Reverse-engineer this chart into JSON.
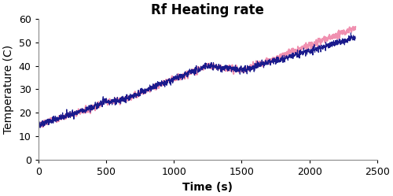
{
  "title": "Rf Heating rate",
  "xlabel": "Time (s)",
  "ylabel": "Temperature (C)",
  "xlim": [
    0,
    2500
  ],
  "ylim": [
    0,
    60
  ],
  "xticks": [
    0,
    500,
    1000,
    1500,
    2000,
    2500
  ],
  "yticks": [
    0,
    10,
    20,
    30,
    40,
    50,
    60
  ],
  "blue_color": "#1a1a8c",
  "pink_color": "#f090b0",
  "blue_linewidth": 0.8,
  "pink_linewidth": 1.4,
  "title_fontsize": 12,
  "axis_label_fontsize": 10,
  "tick_labelsize": 9,
  "total_points": 2340,
  "blue_alpha": 1.0,
  "pink_alpha": 1.0,
  "start_temp": 15.0,
  "end_temp_blue": 52.0,
  "end_temp_pink": 56.0
}
